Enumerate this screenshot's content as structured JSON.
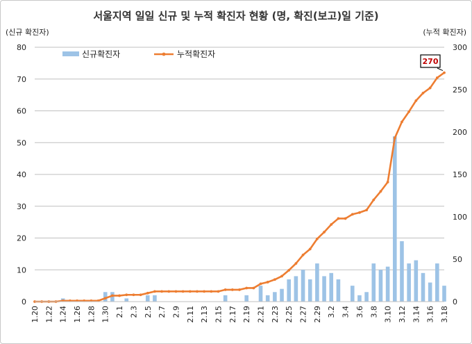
{
  "chart_data": {
    "type": "bar+line",
    "title": "서울지역 일일 신규 및 누적 확진자 현황 (명, 확진(보고)일 기준)",
    "ylabel_left": "(신규 확진자)",
    "ylabel_right": "(누적 확진자)",
    "ylim_left": [
      0,
      80
    ],
    "ylim_right": [
      0,
      300
    ],
    "yticks_left": [
      0,
      10,
      20,
      30,
      40,
      50,
      60,
      70,
      80
    ],
    "yticks_right": [
      0,
      50,
      100,
      150,
      200,
      250,
      300
    ],
    "legend_position": "top-left",
    "x": [
      "1.20",
      "1.21",
      "1.22",
      "1.23",
      "1.24",
      "1.25",
      "1.26",
      "1.27",
      "1.28",
      "1.29",
      "1.30",
      "1.31",
      "2.1",
      "2.2",
      "2.3",
      "2.4",
      "2.5",
      "2.6",
      "2.7",
      "2.8",
      "2.9",
      "2.10",
      "2.11",
      "2.12",
      "2.13",
      "2.14",
      "2.15",
      "2.16",
      "2.17",
      "2.18",
      "2.19",
      "2.20",
      "2.21",
      "2.22",
      "2.23",
      "2.24",
      "2.25",
      "2.26",
      "2.27",
      "2.28",
      "2.29",
      "3.1",
      "3.2",
      "3.3",
      "3.4",
      "3.5",
      "3.6",
      "3.7",
      "3.8",
      "3.9",
      "3.10",
      "3.11",
      "3.12",
      "3.13",
      "3.14",
      "3.15",
      "3.16",
      "3.17",
      "3.18"
    ],
    "x_tick_labels": [
      "1.20",
      "1.22",
      "1.24",
      "1.26",
      "1.28",
      "1.30",
      "2.1",
      "2.3",
      "2.5",
      "2.7",
      "2.9",
      "2.11",
      "2.13",
      "2.15",
      "2.17",
      "2.19",
      "2.21",
      "2.23",
      "2.25",
      "2.27",
      "2.29",
      "3.2",
      "3.4",
      "3.6",
      "3.8",
      "3.10",
      "3.12",
      "3.14",
      "3.16",
      "3.18"
    ],
    "series": [
      {
        "name": "신규확진자",
        "kind": "bar",
        "axis": "left",
        "color": "#9dc3e6",
        "values": [
          0,
          0,
          0,
          0,
          1,
          0,
          0,
          0,
          0,
          0,
          3,
          3,
          0,
          1,
          0,
          0,
          2,
          2,
          0,
          0,
          0,
          0,
          0,
          0,
          0,
          0,
          0,
          2,
          0,
          0,
          2,
          0,
          5,
          2,
          3,
          4,
          7,
          8,
          10,
          7,
          12,
          8,
          9,
          7,
          0,
          5,
          2,
          3,
          12,
          10,
          11,
          52,
          19,
          12,
          13,
          9,
          6,
          12,
          5
        ]
      },
      {
        "name": "누적확진자",
        "kind": "line",
        "axis": "right",
        "color": "#ed7d31",
        "values": [
          0,
          0,
          0,
          0,
          1,
          1,
          1,
          1,
          1,
          1,
          4,
          7,
          7,
          8,
          8,
          8,
          10,
          12,
          12,
          12,
          12,
          12,
          12,
          12,
          12,
          12,
          12,
          14,
          14,
          14,
          16,
          16,
          21,
          23,
          26,
          30,
          37,
          45,
          55,
          62,
          74,
          82,
          91,
          98,
          98,
          103,
          105,
          108,
          120,
          130,
          141,
          193,
          212,
          224,
          237,
          246,
          252,
          264,
          270
        ]
      }
    ],
    "annotations": [
      {
        "target_series": "누적확진자",
        "x": "3.18",
        "text": "270"
      }
    ],
    "colors": {
      "bar": "#9dc3e6",
      "line": "#ed7d31",
      "callout_text": "#c00000",
      "axis": "#bfbfbf"
    }
  }
}
